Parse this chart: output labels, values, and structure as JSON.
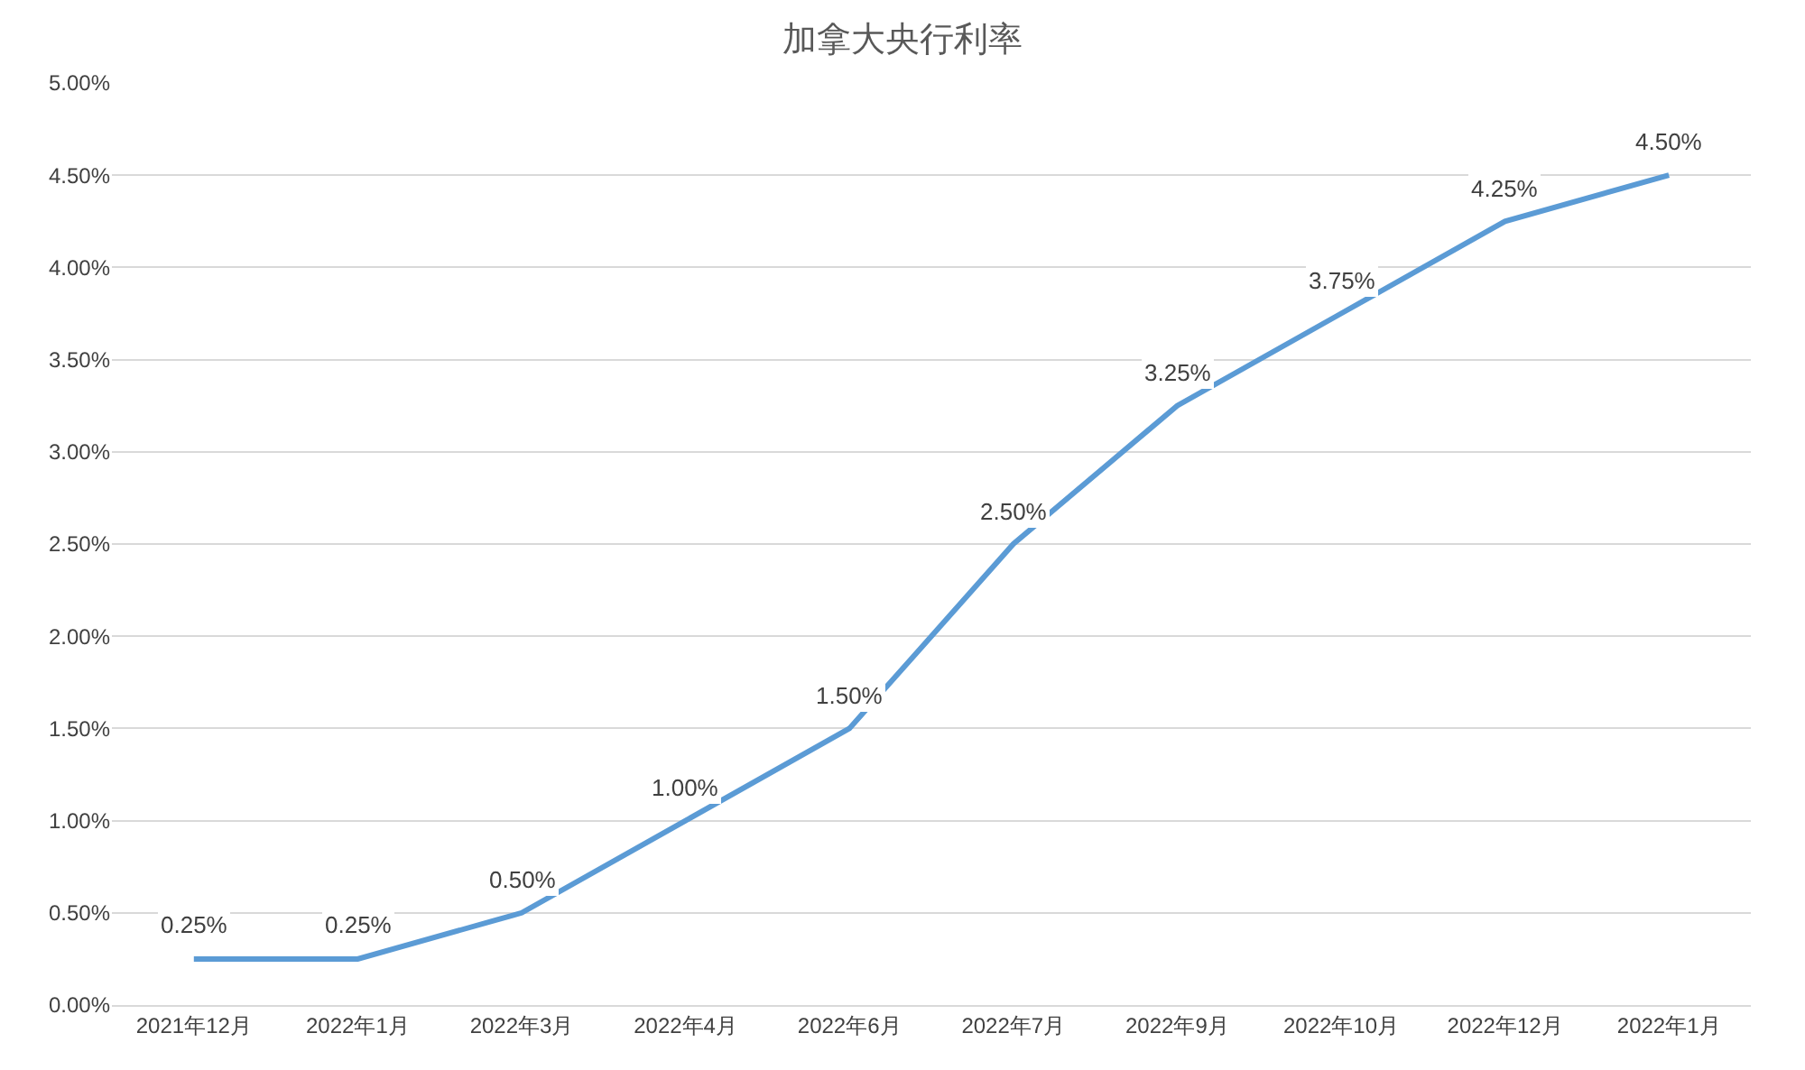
{
  "chart_data": {
    "type": "line",
    "title": "加拿大央行利率",
    "categories": [
      "2021年12月",
      "2022年1月",
      "2022年3月",
      "2022年4月",
      "2022年6月",
      "2022年7月",
      "2022年9月",
      "2022年10月",
      "2022年12月",
      "2022年1月"
    ],
    "series": [
      {
        "color": "#5b9bd5",
        "values": [
          0.25,
          0.25,
          0.5,
          1.0,
          1.5,
          2.5,
          3.25,
          3.75,
          4.25,
          4.5
        ],
        "value_labels": [
          "0.25%",
          "0.25%",
          "0.50%",
          "1.00%",
          "1.50%",
          "2.50%",
          "3.25%",
          "3.75%",
          "4.25%",
          "4.50%"
        ]
      }
    ],
    "ylim": [
      0,
      5
    ],
    "yticks": [
      {
        "value": 0,
        "label": "0.00%"
      },
      {
        "value": 0.5,
        "label": "0.50%"
      },
      {
        "value": 1,
        "label": "1.00%"
      },
      {
        "value": 1.5,
        "label": "1.50%"
      },
      {
        "value": 2,
        "label": "2.00%"
      },
      {
        "value": 2.5,
        "label": "2.50%"
      },
      {
        "value": 3,
        "label": "3.00%"
      },
      {
        "value": 3.5,
        "label": "3.50%"
      },
      {
        "value": 4,
        "label": "4.00%"
      },
      {
        "value": 4.5,
        "label": "4.50%"
      },
      {
        "value": 5,
        "label": "5.00%"
      }
    ],
    "grid": "y",
    "marker": "none",
    "line_style": "solid"
  }
}
